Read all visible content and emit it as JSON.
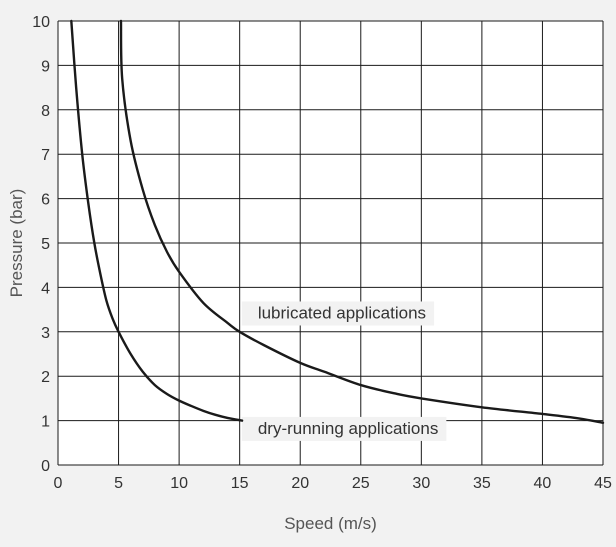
{
  "chart_data": {
    "type": "line",
    "title": "",
    "xlabel": "Speed (m/s)",
    "ylabel": "Pressure (bar)",
    "xlim": [
      0,
      45
    ],
    "ylim": [
      0,
      10
    ],
    "x_ticks": [
      0,
      5,
      10,
      15,
      20,
      25,
      30,
      35,
      40,
      45
    ],
    "y_ticks": [
      0,
      1,
      2,
      3,
      4,
      5,
      6,
      7,
      8,
      9,
      10
    ],
    "grid": true,
    "series": [
      {
        "name": "dry-running applications",
        "color": "#1a1a1a",
        "points": [
          [
            1.1,
            10
          ],
          [
            1.5,
            8.5
          ],
          [
            2,
            7
          ],
          [
            2.5,
            5.9
          ],
          [
            3,
            5
          ],
          [
            3.5,
            4.3
          ],
          [
            4,
            3.7
          ],
          [
            4.5,
            3.3
          ],
          [
            5,
            3
          ],
          [
            6,
            2.5
          ],
          [
            7,
            2.1
          ],
          [
            8,
            1.8
          ],
          [
            9,
            1.6
          ],
          [
            10,
            1.45
          ],
          [
            11,
            1.33
          ],
          [
            12,
            1.22
          ],
          [
            13,
            1.13
          ],
          [
            14,
            1.06
          ],
          [
            15.2,
            1
          ]
        ]
      },
      {
        "name": "lubricated applications",
        "color": "#1a1a1a",
        "points": [
          [
            5.2,
            10
          ],
          [
            5.3,
            8.7
          ],
          [
            6,
            7.3
          ],
          [
            7,
            6.2
          ],
          [
            8,
            5.4
          ],
          [
            9,
            4.8
          ],
          [
            10,
            4.35
          ],
          [
            12,
            3.65
          ],
          [
            14,
            3.2
          ],
          [
            15,
            3
          ],
          [
            17,
            2.7
          ],
          [
            20,
            2.3
          ],
          [
            22,
            2.1
          ],
          [
            25,
            1.8
          ],
          [
            28,
            1.6
          ],
          [
            30,
            1.5
          ],
          [
            35,
            1.3
          ],
          [
            40,
            1.15
          ],
          [
            43,
            1.05
          ],
          [
            45,
            0.95
          ]
        ]
      }
    ],
    "annotations": [
      {
        "text": "lubricated applications",
        "x": 16.5,
        "y": 3.3
      },
      {
        "text": "dry-running applications",
        "x": 16.5,
        "y": 0.7
      }
    ]
  }
}
